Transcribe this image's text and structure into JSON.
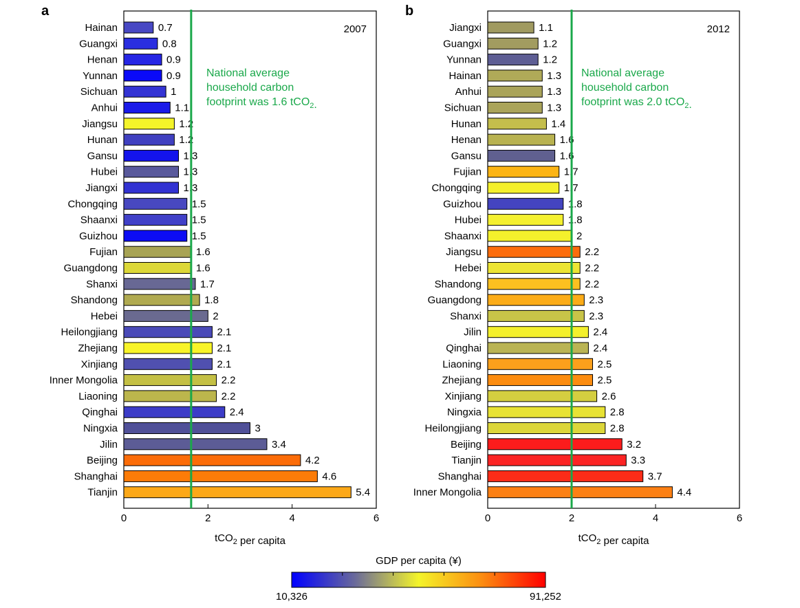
{
  "chart_data": [
    {
      "type": "bar",
      "orientation": "horizontal",
      "panel": "a",
      "year_label": "2007",
      "categories": [
        "Hainan",
        "Guangxi",
        "Henan",
        "Yunnan",
        "Sichuan",
        "Anhui",
        "Jiangsu",
        "Hunan",
        "Gansu",
        "Hubei",
        "Jiangxi",
        "Chongqing",
        "Shaanxi",
        "Guizhou",
        "Fujian",
        "Guangdong",
        "Shanxi",
        "Shandong",
        "Hebei",
        "Heilongjiang",
        "Zhejiang",
        "Xinjiang",
        "Inner Mongolia",
        "Liaoning",
        "Qinghai",
        "Ningxia",
        "Jilin",
        "Beijing",
        "Shanghai",
        "Tianjin"
      ],
      "values": [
        0.7,
        0.8,
        0.9,
        0.9,
        1,
        1.1,
        1.2,
        1.2,
        1.3,
        1.3,
        1.3,
        1.5,
        1.5,
        1.5,
        1.6,
        1.6,
        1.7,
        1.8,
        2,
        2.1,
        2.1,
        2.1,
        2.2,
        2.2,
        2.4,
        3,
        3.4,
        4.2,
        4.6,
        5.4
      ],
      "value_labels": [
        "0.7",
        "0.8",
        "0.9",
        "0.9",
        "1",
        "1.1",
        "1.2",
        "1.2",
        "1.3",
        "1.3",
        "1.3",
        "1.5",
        "1.5",
        "1.5",
        "1.6",
        "1.6",
        "1.7",
        "1.8",
        "2",
        "2.1",
        "2.1",
        "2.1",
        "2.2",
        "2.2",
        "2.4",
        "3",
        "3.4",
        "4.2",
        "4.6",
        "5.4"
      ],
      "bar_colors": [
        "#4848c4",
        "#2a2ee0",
        "#2626e4",
        "#0a0af8",
        "#3434d4",
        "#1a1ae8",
        "#f4f42a",
        "#4040c0",
        "#1414ec",
        "#5a5a9c",
        "#3232d2",
        "#4848c0",
        "#4040c8",
        "#0c0cf4",
        "#a8a454",
        "#dcd838",
        "#686894",
        "#b0aa50",
        "#6a6a90",
        "#4a4ab8",
        "#f8f428",
        "#5050b0",
        "#c4c044",
        "#bcb64c",
        "#3c3cc8",
        "#505098",
        "#5c5c96",
        "#fc6c08",
        "#fc7c08",
        "#fca818"
      ],
      "xlim": [
        0,
        6
      ],
      "xticks": [
        "0",
        "2",
        "4",
        "6"
      ],
      "xlabel": "tCO2 per capita",
      "national_average": 1.6,
      "annotation": [
        "National average",
        "household carbon",
        "footprint was 1.6 tCO2."
      ]
    },
    {
      "type": "bar",
      "orientation": "horizontal",
      "panel": "b",
      "year_label": "2012",
      "categories": [
        "Jiangxi",
        "Guangxi",
        "Yunnan",
        "Hainan",
        "Anhui",
        "Sichuan",
        "Hunan",
        "Henan",
        "Gansu",
        "Fujian",
        "Chongqing",
        "Guizhou",
        "Hubei",
        "Shaanxi",
        "Jiangsu",
        "Hebei",
        "Shandong",
        "Guangdong",
        "Shanxi",
        "Jilin",
        "Qinghai",
        "Liaoning",
        "Zhejiang",
        "Xinjiang",
        "Ningxia",
        "Heilongjiang",
        "Beijing",
        "Tianjin",
        "Shanghai",
        "Inner Mongolia"
      ],
      "values": [
        1.1,
        1.2,
        1.2,
        1.3,
        1.3,
        1.3,
        1.4,
        1.6,
        1.6,
        1.7,
        1.7,
        1.8,
        1.8,
        2,
        2.2,
        2.2,
        2.2,
        2.3,
        2.3,
        2.4,
        2.4,
        2.5,
        2.5,
        2.6,
        2.8,
        2.8,
        3.2,
        3.3,
        3.7,
        4.4
      ],
      "value_labels": [
        "1.1",
        "1.2",
        "1.2",
        "1.3",
        "1.3",
        "1.3",
        "1.4",
        "1.6",
        "1.6",
        "1.7",
        "1.7",
        "1.8",
        "1.8",
        "2",
        "2.2",
        "2.2",
        "2.2",
        "2.3",
        "2.3",
        "2.4",
        "2.4",
        "2.5",
        "2.5",
        "2.6",
        "2.8",
        "2.8",
        "3.2",
        "3.3",
        "3.7",
        "4.4"
      ],
      "bar_colors": [
        "#a09a60",
        "#a29c60",
        "#5e5e94",
        "#b0aa58",
        "#aaa45a",
        "#aaa45a",
        "#c4be4c",
        "#b8b250",
        "#606090",
        "#fcb414",
        "#f4f02c",
        "#4444c0",
        "#f4f030",
        "#f4f02c",
        "#fc6c0c",
        "#ece434",
        "#fcc020",
        "#fcac18",
        "#c8c448",
        "#f4f02c",
        "#bab454",
        "#fca01c",
        "#fc8c10",
        "#d4ce40",
        "#e8e234",
        "#dcd63a",
        "#fc1c1c",
        "#fc2424",
        "#fc2c18",
        "#fc8014"
      ],
      "xlim": [
        0,
        6
      ],
      "xticks": [
        "0",
        "2",
        "4",
        "6"
      ],
      "xlabel": "tCO2 per capita",
      "national_average": 2.0,
      "annotation": [
        "National average",
        "household carbon",
        "footprint was 2.0 tCO2."
      ]
    }
  ],
  "colorbar": {
    "title": "GDP per capita (¥)",
    "min_label": "10,326",
    "max_label": "91,252",
    "stops": [
      "#0000ff",
      "#6a6a9a",
      "#f4f42a",
      "#fc8c10",
      "#ff0000"
    ]
  },
  "colors": {
    "average_line": "#1aa84a",
    "axis": "#000000"
  }
}
